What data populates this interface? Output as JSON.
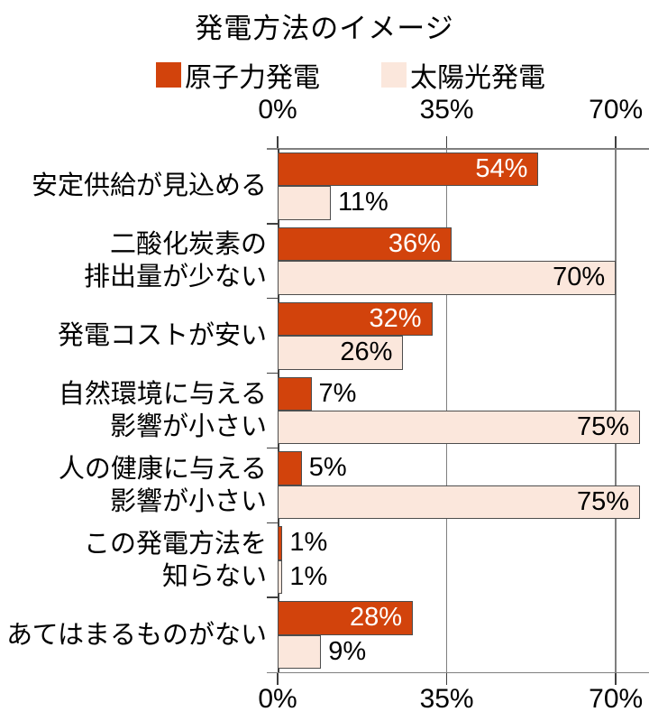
{
  "title": "発電方法のイメージ",
  "legend": {
    "items": [
      {
        "label": "原子力発電",
        "color": "#D2430C"
      },
      {
        "label": "太陽光発電",
        "color": "#FBE7DC"
      }
    ]
  },
  "chart_data": {
    "type": "bar",
    "orientation": "horizontal",
    "title": "発電方法のイメージ",
    "categories": [
      "安定供給が見込める",
      "二酸化炭素の排出量が少ない",
      "発電コストが安い",
      "自然環境に与える影響が小さい",
      "人の健康に与える影響が小さい",
      "この発電方法を知らない",
      "あてはまるものがない"
    ],
    "category_label_lines": [
      [
        "安定供給が見込める"
      ],
      [
        "二酸化炭素の",
        "排出量が少ない"
      ],
      [
        "発電コストが安い"
      ],
      [
        "自然環境に与える",
        "影響が小さい"
      ],
      [
        "人の健康に与える",
        "影響が小さい"
      ],
      [
        "この発電方法を",
        "知らない"
      ],
      [
        "あてはまるものがない"
      ]
    ],
    "series": [
      {
        "name": "原子力発電",
        "color": "#D2430C",
        "border_color": "#4d4d4d",
        "label_color_inside": "#FFFFFF",
        "values": [
          54,
          36,
          32,
          7,
          5,
          1,
          28
        ]
      },
      {
        "name": "太陽光発電",
        "color": "#FBE7DC",
        "border_color": "#4d4d4d",
        "label_color_inside": "#000000",
        "values": [
          11,
          70,
          26,
          75,
          75,
          1,
          9
        ]
      }
    ],
    "value_labels": {
      "series_0": [
        "54%",
        "36%",
        "32%",
        "7%",
        "5%",
        "1%",
        "28%"
      ],
      "series_1": [
        "11%",
        "70%",
        "26%",
        "75%",
        "75%",
        "1%",
        "9%"
      ]
    },
    "value_suffix": "%",
    "x_ticks": [
      {
        "value": 0,
        "label": "0%"
      },
      {
        "value": 35,
        "label": "35%"
      },
      {
        "value": 70,
        "label": "70%"
      }
    ],
    "xlim": [
      0,
      77
    ],
    "grid": true,
    "legend_position": "top",
    "colors": {
      "grid": "#7F7F7F",
      "axis": "#404040",
      "text": "#000000",
      "background": "#FFFFFF"
    }
  }
}
